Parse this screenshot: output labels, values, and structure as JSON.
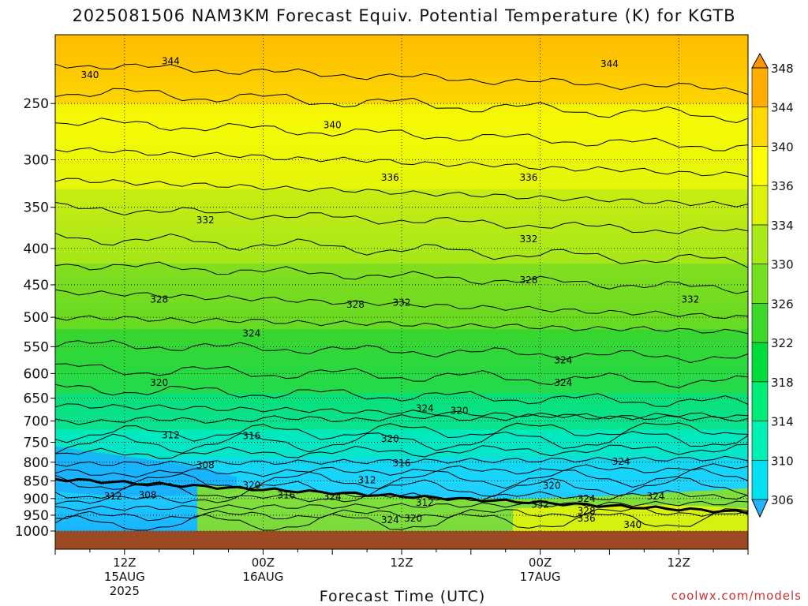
{
  "title": "2025081506 NAM3KM Forecast Equiv. Potential Temperature (K) for KGTB",
  "x_axis_title": "Forecast Time (UTC)",
  "credit": "coolwx.com/models",
  "colors": {
    "ground": "#9b4a24",
    "line": "#000000"
  },
  "chart_data": {
    "type": "heatmap",
    "title": "2025081506 NAM3KM Forecast Equiv. Potential Temperature (K) for KGTB",
    "xlabel": "Forecast Time (UTC)",
    "ylabel": "",
    "x_hours_range": [
      0,
      60
    ],
    "y_pressure_range": [
      1000,
      200
    ],
    "y_scale": "log-pressure",
    "grid": true,
    "y_ticks": [
      250,
      300,
      350,
      400,
      450,
      500,
      550,
      600,
      650,
      700,
      750,
      800,
      850,
      900,
      950,
      1000
    ],
    "x_ticks": [
      {
        "hour": 6,
        "lines": [
          "12Z",
          "15AUG",
          "2025"
        ]
      },
      {
        "hour": 18,
        "lines": [
          "00Z",
          "16AUG"
        ]
      },
      {
        "hour": 30,
        "lines": [
          "12Z"
        ]
      },
      {
        "hour": 42,
        "lines": [
          "00Z",
          "17AUG"
        ]
      },
      {
        "hour": 54,
        "lines": [
          "12Z"
        ]
      }
    ],
    "colorbar": {
      "levels": [
        306,
        310,
        314,
        318,
        322,
        326,
        330,
        334,
        336,
        340,
        344,
        348
      ],
      "colors": [
        "#1fb5ff",
        "#00e0f0",
        "#00f0b4",
        "#00ec78",
        "#00dc3c",
        "#3cd828",
        "#74e020",
        "#a8ea18",
        "#dcf20a",
        "#ffff00",
        "#ffd800",
        "#ffae00",
        "#ff9400"
      ]
    },
    "contour_labels": [
      {
        "text": "344",
        "hour": 10,
        "p": 218
      },
      {
        "text": "340",
        "hour": 3,
        "p": 228
      },
      {
        "text": "344",
        "hour": 48,
        "p": 220
      },
      {
        "text": "340",
        "hour": 24,
        "p": 268
      },
      {
        "text": "336",
        "hour": 29,
        "p": 318
      },
      {
        "text": "336",
        "hour": 41,
        "p": 318
      },
      {
        "text": "332",
        "hour": 13,
        "p": 365
      },
      {
        "text": "332",
        "hour": 41,
        "p": 388
      },
      {
        "text": "328",
        "hour": 41,
        "p": 443
      },
      {
        "text": "332",
        "hour": 30,
        "p": 477
      },
      {
        "text": "328",
        "hour": 26,
        "p": 480
      },
      {
        "text": "328",
        "hour": 9,
        "p": 472
      },
      {
        "text": "332",
        "hour": 55,
        "p": 472
      },
      {
        "text": "324",
        "hour": 17,
        "p": 527
      },
      {
        "text": "324",
        "hour": 44,
        "p": 575
      },
      {
        "text": "324",
        "hour": 44,
        "p": 618
      },
      {
        "text": "320",
        "hour": 9,
        "p": 618
      },
      {
        "text": "324",
        "hour": 32,
        "p": 672
      },
      {
        "text": "320",
        "hour": 35,
        "p": 677
      },
      {
        "text": "312",
        "hour": 10,
        "p": 733
      },
      {
        "text": "316",
        "hour": 17,
        "p": 735
      },
      {
        "text": "320",
        "hour": 29,
        "p": 741
      },
      {
        "text": "308",
        "hour": 13,
        "p": 808
      },
      {
        "text": "316",
        "hour": 30,
        "p": 802
      },
      {
        "text": "324",
        "hour": 49,
        "p": 798
      },
      {
        "text": "312",
        "hour": 27,
        "p": 848
      },
      {
        "text": "320",
        "hour": 17,
        "p": 862
      },
      {
        "text": "320",
        "hour": 43,
        "p": 863
      },
      {
        "text": "312",
        "hour": 5,
        "p": 893
      },
      {
        "text": "308",
        "hour": 8,
        "p": 890
      },
      {
        "text": "316",
        "hour": 20,
        "p": 890
      },
      {
        "text": "324",
        "hour": 24,
        "p": 895
      },
      {
        "text": "312",
        "hour": 32,
        "p": 912
      },
      {
        "text": "324",
        "hour": 52,
        "p": 893
      },
      {
        "text": "324",
        "hour": 46,
        "p": 900
      },
      {
        "text": "332",
        "hour": 42,
        "p": 918
      },
      {
        "text": "328",
        "hour": 46,
        "p": 937
      },
      {
        "text": "336",
        "hour": 46,
        "p": 960
      },
      {
        "text": "320",
        "hour": 31,
        "p": 960
      },
      {
        "text": "324",
        "hour": 29,
        "p": 965
      },
      {
        "text": "340",
        "hour": 50,
        "p": 980
      }
    ]
  }
}
